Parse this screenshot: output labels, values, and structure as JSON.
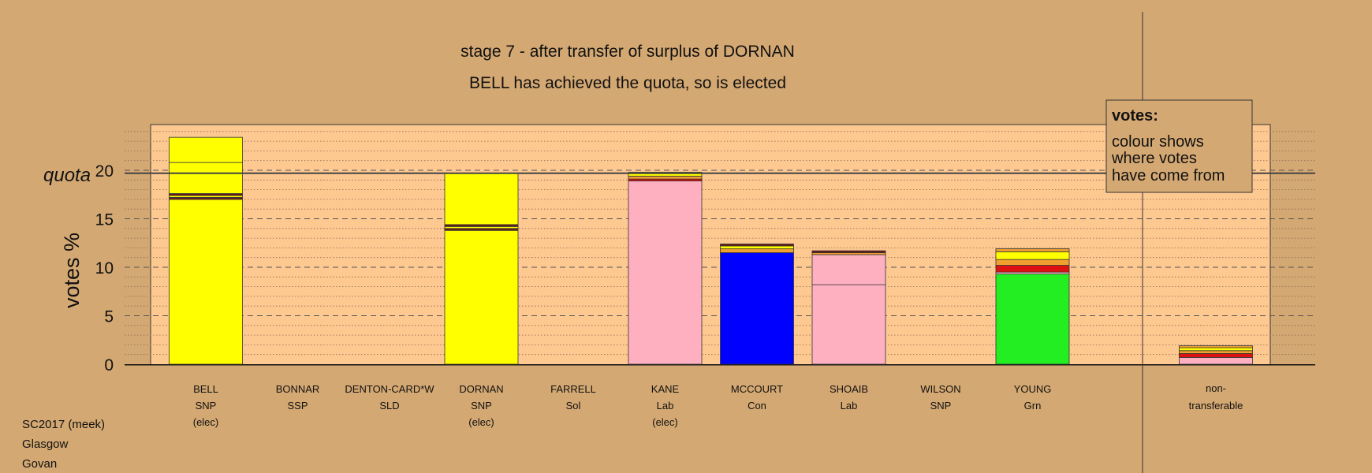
{
  "chart_data": {
    "type": "bar",
    "stacked": true,
    "title": "stage 7 - after transfer of surplus of DORNAN",
    "subtitle": "BELL has achieved the quota, so is elected",
    "ylabel": "votes %",
    "quota_label": "quota",
    "quota_value": 19.7,
    "ylim": [
      0,
      25
    ],
    "yticks": [
      0,
      5,
      10,
      15,
      20
    ],
    "grid": "dashed-horizontal",
    "legend_position": "top-right",
    "legend": {
      "heading": "votes:",
      "lines": [
        "colour shows",
        "where votes",
        "have come from"
      ]
    },
    "colors": {
      "snp": "#ffff00",
      "lab": "#ffb0c0",
      "con": "#0000ff",
      "grn": "#22ee22",
      "ld": "#f0a030",
      "dark": "#6b1a1a",
      "red": "#dd1111"
    },
    "candidates": [
      {
        "name": "BELL",
        "party": "SNP",
        "status": "(elec)",
        "segments": [
          {
            "value": 17.0,
            "color": "#ffff00"
          },
          {
            "value": 0.2,
            "color": "#6b1a1a"
          },
          {
            "value": 0.2,
            "color": "#ffff00"
          },
          {
            "value": 0.2,
            "color": "#6b1a1a"
          },
          {
            "value": 3.2,
            "color": "#ffff00"
          },
          {
            "value": 2.6,
            "color": "#ffff00"
          }
        ]
      },
      {
        "name": "BONNAR",
        "party": "SSP",
        "status": "",
        "segments": []
      },
      {
        "name": "DENTON-CARD*W",
        "party": "SLD",
        "status": "",
        "segments": []
      },
      {
        "name": "DORNAN",
        "party": "SNP",
        "status": "(elec)",
        "segments": [
          {
            "value": 13.8,
            "color": "#ffff00"
          },
          {
            "value": 0.2,
            "color": "#6b1a1a"
          },
          {
            "value": 0.2,
            "color": "#ffff00"
          },
          {
            "value": 0.2,
            "color": "#6b1a1a"
          },
          {
            "value": 5.3,
            "color": "#ffff00"
          }
        ]
      },
      {
        "name": "FARRELL",
        "party": "Sol",
        "status": "",
        "segments": []
      },
      {
        "name": "KANE",
        "party": "Lab",
        "status": "(elec)",
        "segments": [
          {
            "value": 18.9,
            "color": "#ffb0c0"
          },
          {
            "value": 0.2,
            "color": "#dd1111"
          },
          {
            "value": 0.3,
            "color": "#f0a030"
          },
          {
            "value": 0.4,
            "color": "#ffff00"
          }
        ]
      },
      {
        "name": "MCCOURT",
        "party": "Con",
        "status": "",
        "segments": [
          {
            "value": 11.5,
            "color": "#0000ff"
          },
          {
            "value": 0.4,
            "color": "#f0a030"
          },
          {
            "value": 0.3,
            "color": "#ffff00"
          },
          {
            "value": 0.2,
            "color": "#6b1a1a"
          }
        ]
      },
      {
        "name": "SHOAIB",
        "party": "Lab",
        "status": "",
        "segments": [
          {
            "value": 8.2,
            "color": "#ffb0c0"
          },
          {
            "value": 3.1,
            "color": "#ffb0c0"
          },
          {
            "value": 0.2,
            "color": "#f0a030"
          },
          {
            "value": 0.2,
            "color": "#6b1a1a"
          }
        ]
      },
      {
        "name": "WILSON",
        "party": "SNP",
        "status": "",
        "segments": []
      },
      {
        "name": "YOUNG",
        "party": "Grn",
        "status": "",
        "segments": [
          {
            "value": 9.3,
            "color": "#22ee22"
          },
          {
            "value": 0.2,
            "color": "#ffb0c0"
          },
          {
            "value": 0.7,
            "color": "#dd1111"
          },
          {
            "value": 0.6,
            "color": "#f0a030"
          },
          {
            "value": 0.8,
            "color": "#ffff00"
          },
          {
            "value": 0.3,
            "color": "#f0a030"
          }
        ]
      }
    ],
    "nontransferable": {
      "label_line1": "non-",
      "label_line2": "transferable",
      "segments": [
        {
          "value": 0.7,
          "color": "#ffb0c0"
        },
        {
          "value": 0.4,
          "color": "#dd1111"
        },
        {
          "value": 0.3,
          "color": "#f0a030"
        },
        {
          "value": 0.3,
          "color": "#ffff00"
        },
        {
          "value": 0.2,
          "color": "#f0a030"
        }
      ]
    }
  },
  "footer": {
    "line1": "SC2017 (meek)",
    "line2": "Glasgow",
    "line3": "Govan"
  }
}
